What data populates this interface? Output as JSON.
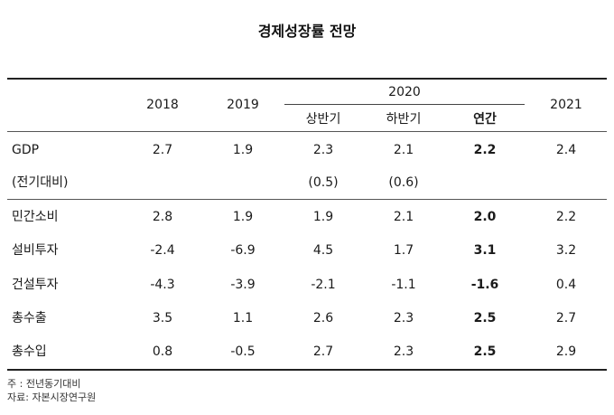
{
  "title": "경제성장률 전망",
  "header": {
    "y2018": "2018",
    "y2019": "2019",
    "y2020": "2020",
    "y2021": "2021",
    "sub_h1": "상반기",
    "sub_h2": "하반기",
    "sub_annual": "연간"
  },
  "rows": [
    {
      "label": "GDP",
      "v2018": "2.7",
      "v2019": "1.9",
      "h1": "2.3",
      "h2": "2.1",
      "annual": "2.2",
      "v2021": "2.4"
    },
    {
      "label": "(전기대비)",
      "v2018": "",
      "v2019": "",
      "h1": "(0.5)",
      "h2": "(0.6)",
      "annual": "",
      "v2021": ""
    },
    {
      "label": "민간소비",
      "v2018": "2.8",
      "v2019": "1.9",
      "h1": "1.9",
      "h2": "2.1",
      "annual": "2.0",
      "v2021": "2.2"
    },
    {
      "label": "설비투자",
      "v2018": "-2.4",
      "v2019": "-6.9",
      "h1": "4.5",
      "h2": "1.7",
      "annual": "3.1",
      "v2021": "3.2"
    },
    {
      "label": "건설투자",
      "v2018": "-4.3",
      "v2019": "-3.9",
      "h1": "-2.1",
      "h2": "-1.1",
      "annual": "-1.6",
      "v2021": "0.4"
    },
    {
      "label": "총수출",
      "v2018": "3.5",
      "v2019": "1.1",
      "h1": "2.6",
      "h2": "2.3",
      "annual": "2.5",
      "v2021": "2.7"
    },
    {
      "label": "총수입",
      "v2018": "0.8",
      "v2019": "-0.5",
      "h1": "2.7",
      "h2": "2.3",
      "annual": "2.5",
      "v2021": "2.9"
    }
  ],
  "notes": {
    "note": "주   : 전년동기대비",
    "source": "자료: 자본시장연구원"
  }
}
